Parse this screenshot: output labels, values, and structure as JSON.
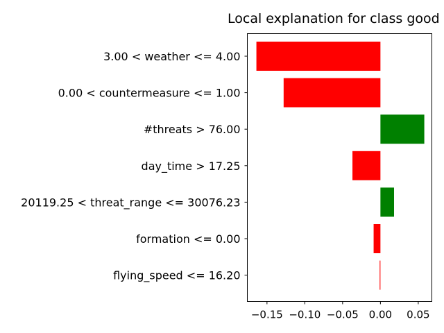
{
  "chart_data": {
    "type": "bar",
    "orientation": "horizontal",
    "title": "Local explanation for class good",
    "xlabel": "",
    "ylabel": "",
    "xlim": [
      -0.176,
      0.068
    ],
    "xticks": [
      -0.15,
      -0.1,
      -0.05,
      0.0,
      0.05
    ],
    "xtick_labels": [
      "−0.15",
      "−0.10",
      "−0.05",
      "0.00",
      "0.05"
    ],
    "grid": false,
    "categories": [
      "3.00 < weather <= 4.00",
      "0.00 < countermeasure <= 1.00",
      "#threats > 76.00",
      "day_time > 17.25",
      "20119.25 < threat_range <= 30076.23",
      "formation <= 0.00",
      "flying_speed <= 16.20"
    ],
    "values": [
      -0.164,
      -0.128,
      0.058,
      -0.037,
      0.018,
      -0.009,
      -0.001
    ],
    "colors": {
      "positive": "#008000",
      "negative": "#ff0000"
    }
  }
}
